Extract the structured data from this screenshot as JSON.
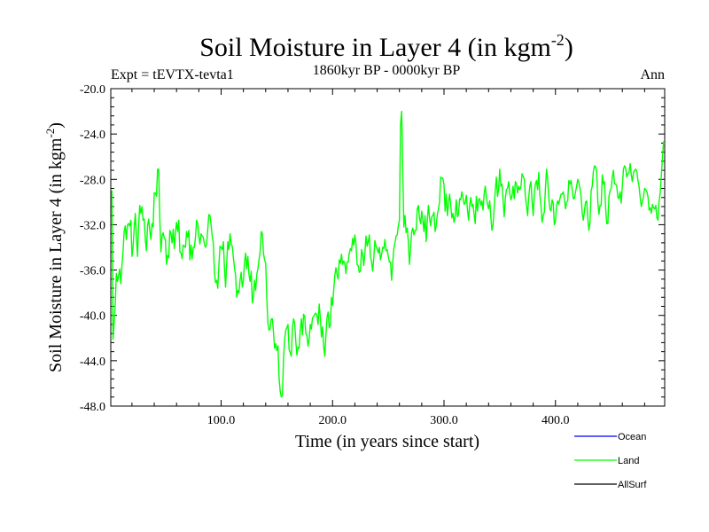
{
  "chart_data": {
    "type": "line",
    "title_main": "Soil Moisture in Layer 4 (in kgm",
    "title_sup": "-2",
    "title_close": ")",
    "subtitle": "1860kyr BP - 0000kyr BP",
    "expt_label": "Expt = tEVTX-tevta1",
    "season_label": "Ann",
    "xlabel": "Time (in years since start)",
    "ylabel_main": "Soil Moisture in Layer 4 (in kgm",
    "ylabel_sup": "-2",
    "ylabel_close": ")",
    "xlim": [
      1,
      498
    ],
    "ylim": [
      -48,
      -20
    ],
    "x_ticks": [
      100,
      200,
      300,
      400
    ],
    "x_tick_labels": [
      "100.0",
      "200.0",
      "300.0",
      "400.0"
    ],
    "y_ticks": [
      -20,
      -24,
      -28,
      -32,
      -36,
      -40,
      -44,
      -48
    ],
    "y_tick_labels": [
      "-20.0",
      "-24.0",
      "-28.0",
      "-32.0",
      "-36.0",
      "-40.0",
      "-44.0",
      "-48.0"
    ],
    "legend": [
      {
        "name": "Ocean",
        "color": "#0000ff"
      },
      {
        "name": "Land",
        "color": "#00ff00"
      },
      {
        "name": "AllSurf",
        "color": "#000000"
      }
    ],
    "series": [
      {
        "name": "Land",
        "color": "#00ff00",
        "x_start": 1,
        "x_step": 1,
        "values": [
          -28.9,
          -29.0,
          -42.1,
          -40.7,
          -39.0,
          -36.3,
          -37.0,
          -36.5,
          -35.9,
          -37.2,
          -35.6,
          -34.4,
          -32.6,
          -32.1,
          -33.3,
          -32.0,
          -31.9,
          -32.1,
          -31.6,
          -34.8,
          -33.9,
          -32.3,
          -31.0,
          -33.0,
          -34.8,
          -32.0,
          -30.3,
          -31.0,
          -30.4,
          -31.6,
          -31.5,
          -33.3,
          -34.3,
          -32.1,
          -31.5,
          -32.5,
          -33.3,
          -31.9,
          -32.2,
          -29.2,
          -29.2,
          -29.5,
          -27.1,
          -27.1,
          -31.5,
          -34.4,
          -33.0,
          -32.7,
          -33.2,
          -33.3,
          -35.5,
          -34.7,
          -34.9,
          -32.5,
          -32.8,
          -33.6,
          -32.4,
          -34.1,
          -32.7,
          -31.8,
          -32.6,
          -31.6,
          -34.4,
          -34.5,
          -35.0,
          -33.8,
          -33.9,
          -34.0,
          -32.6,
          -33.1,
          -32.5,
          -35.1,
          -33.8,
          -35.0,
          -34.0,
          -34.0,
          -33.1,
          -31.6,
          -31.9,
          -33.0,
          -33.7,
          -32.8,
          -33.0,
          -33.1,
          -33.7,
          -34.0,
          -33.7,
          -32.4,
          -31.1,
          -31.2,
          -32.0,
          -33.0,
          -33.6,
          -36.2,
          -37.1,
          -36.9,
          -37.6,
          -35.6,
          -33.9,
          -34.0,
          -34.2,
          -33.5,
          -35.8,
          -37.5,
          -35.4,
          -33.5,
          -34.2,
          -32.8,
          -33.7,
          -33.9,
          -34.9,
          -35.8,
          -36.5,
          -38.4,
          -37.8,
          -38.0,
          -36.9,
          -36.2,
          -37.5,
          -36.9,
          -35.3,
          -34.5,
          -35.9,
          -34.8,
          -36.4,
          -37.0,
          -36.1,
          -38.9,
          -38.3,
          -36.9,
          -37.8,
          -36.4,
          -35.9,
          -35.1,
          -34.4,
          -32.6,
          -32.8,
          -34.5,
          -35.1,
          -35.4,
          -38.5,
          -40.7,
          -41.3,
          -41.2,
          -40.3,
          -40.3,
          -41.5,
          -42.9,
          -42.5,
          -43.1,
          -42.7,
          -45.5,
          -46.7,
          -47.2,
          -47.1,
          -43.8,
          -42.1,
          -41.3,
          -41.1,
          -40.8,
          -43.0,
          -43.3,
          -43.6,
          -41.1,
          -40.3,
          -40.7,
          -42.3,
          -43.5,
          -42.8,
          -42.9,
          -41.3,
          -40.3,
          -41.7,
          -39.9,
          -40.1,
          -41.6,
          -41.8,
          -42.7,
          -42.1,
          -40.8,
          -41.2,
          -40.2,
          -40.1,
          -39.9,
          -39.8,
          -40.0,
          -40.8,
          -39.0,
          -40.2,
          -41.9,
          -41.0,
          -42.7,
          -43.6,
          -41.8,
          -40.2,
          -39.7,
          -41.1,
          -40.9,
          -38.4,
          -39.1,
          -37.8,
          -36.5,
          -35.8,
          -36.4,
          -36.8,
          -35.1,
          -35.4,
          -34.6,
          -35.5,
          -35.2,
          -35.4,
          -36.3,
          -35.3,
          -35.3,
          -34.5,
          -34.1,
          -34.3,
          -33.2,
          -33.8,
          -32.9,
          -33.7,
          -35.5,
          -35.6,
          -36.2,
          -36.1,
          -34.2,
          -34.6,
          -35.6,
          -34.5,
          -33.0,
          -33.9,
          -33.5,
          -32.9,
          -34.8,
          -35.3,
          -36.1,
          -34.9,
          -33.4,
          -33.9,
          -34.1,
          -34.5,
          -34.0,
          -35.1,
          -34.6,
          -34.0,
          -34.1,
          -33.3,
          -34.3,
          -34.2,
          -34.8,
          -35.3,
          -35.3,
          -36.9,
          -35.3,
          -34.1,
          -33.6,
          -33.0,
          -32.9,
          -32.1,
          -31.6,
          -23.1,
          -22.0,
          -27.4,
          -32.2,
          -31.2,
          -32.7,
          -32.3,
          -33.5,
          -35.5,
          -34.1,
          -32.6,
          -32.3,
          -32.9,
          -32.5,
          -32.5,
          -30.6,
          -30.3,
          -31.4,
          -31.9,
          -30.8,
          -31.6,
          -32.6,
          -31.2,
          -33.5,
          -31.6,
          -30.3,
          -31.4,
          -32.1,
          -31.3,
          -31.2,
          -30.9,
          -32.6,
          -32.1,
          -31.1,
          -30.6,
          -30.0,
          -27.8,
          -27.9,
          -27.9,
          -28.5,
          -30.8,
          -29.3,
          -31.2,
          -30.1,
          -29.3,
          -30.2,
          -31.4,
          -31.0,
          -31.8,
          -31.2,
          -29.8,
          -31.3,
          -31.1,
          -29.7,
          -29.8,
          -29.1,
          -29.6,
          -30.2,
          -30.1,
          -29.4,
          -30.6,
          -31.6,
          -30.3,
          -29.6,
          -30.4,
          -30.2,
          -31.1,
          -31.9,
          -29.5,
          -30.8,
          -29.8,
          -29.7,
          -30.3,
          -29.9,
          -30.7,
          -29.3,
          -28.6,
          -29.5,
          -30.2,
          -30.6,
          -29.9,
          -31.3,
          -32.5,
          -32.0,
          -30.5,
          -29.0,
          -27.8,
          -29.5,
          -28.9,
          -27.1,
          -28.6,
          -28.4,
          -29.8,
          -31.3,
          -29.7,
          -28.9,
          -28.8,
          -28.2,
          -29.2,
          -29.8,
          -29.5,
          -28.6,
          -29.7,
          -28.2,
          -28.4,
          -29.2,
          -28.6,
          -28.9,
          -28.7,
          -27.5,
          -27.7,
          -28.0,
          -29.5,
          -30.3,
          -31.2,
          -29.6,
          -28.6,
          -28.2,
          -29.9,
          -31.2,
          -29.3,
          -28.4,
          -28.1,
          -28.9,
          -27.4,
          -29.4,
          -30.3,
          -31.8,
          -31.2,
          -30.9,
          -28.8,
          -27.1,
          -28.0,
          -29.6,
          -30.6,
          -30.8,
          -29.8,
          -30.1,
          -32.0,
          -31.7,
          -30.3,
          -29.9,
          -30.2,
          -29.7,
          -29.3,
          -29.3,
          -29.1,
          -29.7,
          -30.6,
          -30.0,
          -29.9,
          -28.1,
          -28.4,
          -28.1,
          -28.9,
          -29.7,
          -29.7,
          -29.1,
          -28.6,
          -28.0,
          -28.3,
          -28.8,
          -29.5,
          -31.0,
          -31.6,
          -30.8,
          -30.0,
          -29.9,
          -31.4,
          -32.5,
          -31.8,
          -29.0,
          -28.6,
          -27.3,
          -26.8,
          -26.9,
          -27.3,
          -30.0,
          -31.1,
          -30.3,
          -30.3,
          -27.6,
          -28.4,
          -28.2,
          -30.5,
          -31.9,
          -31.9,
          -29.5,
          -29.0,
          -28.8,
          -27.8,
          -27.2,
          -28.4,
          -28.4,
          -28.6,
          -29.6,
          -29.7,
          -29.1,
          -30.1,
          -28.6,
          -27.1,
          -26.8,
          -27.0,
          -27.8,
          -27.5,
          -27.4,
          -26.6,
          -27.6,
          -28.2,
          -27.4,
          -27.2,
          -27.1,
          -27.3,
          -28.1,
          -28.6,
          -29.6,
          -30.4,
          -30.0,
          -29.5,
          -28.8,
          -28.9,
          -29.1,
          -29.5,
          -30.7,
          -30.5,
          -31.0,
          -30.2,
          -30.5,
          -30.6,
          -30.3,
          -31.4,
          -31.6,
          -29.9,
          -29.2,
          -27.6,
          -26.1,
          -24.7,
          -24.9
        ]
      }
    ]
  }
}
